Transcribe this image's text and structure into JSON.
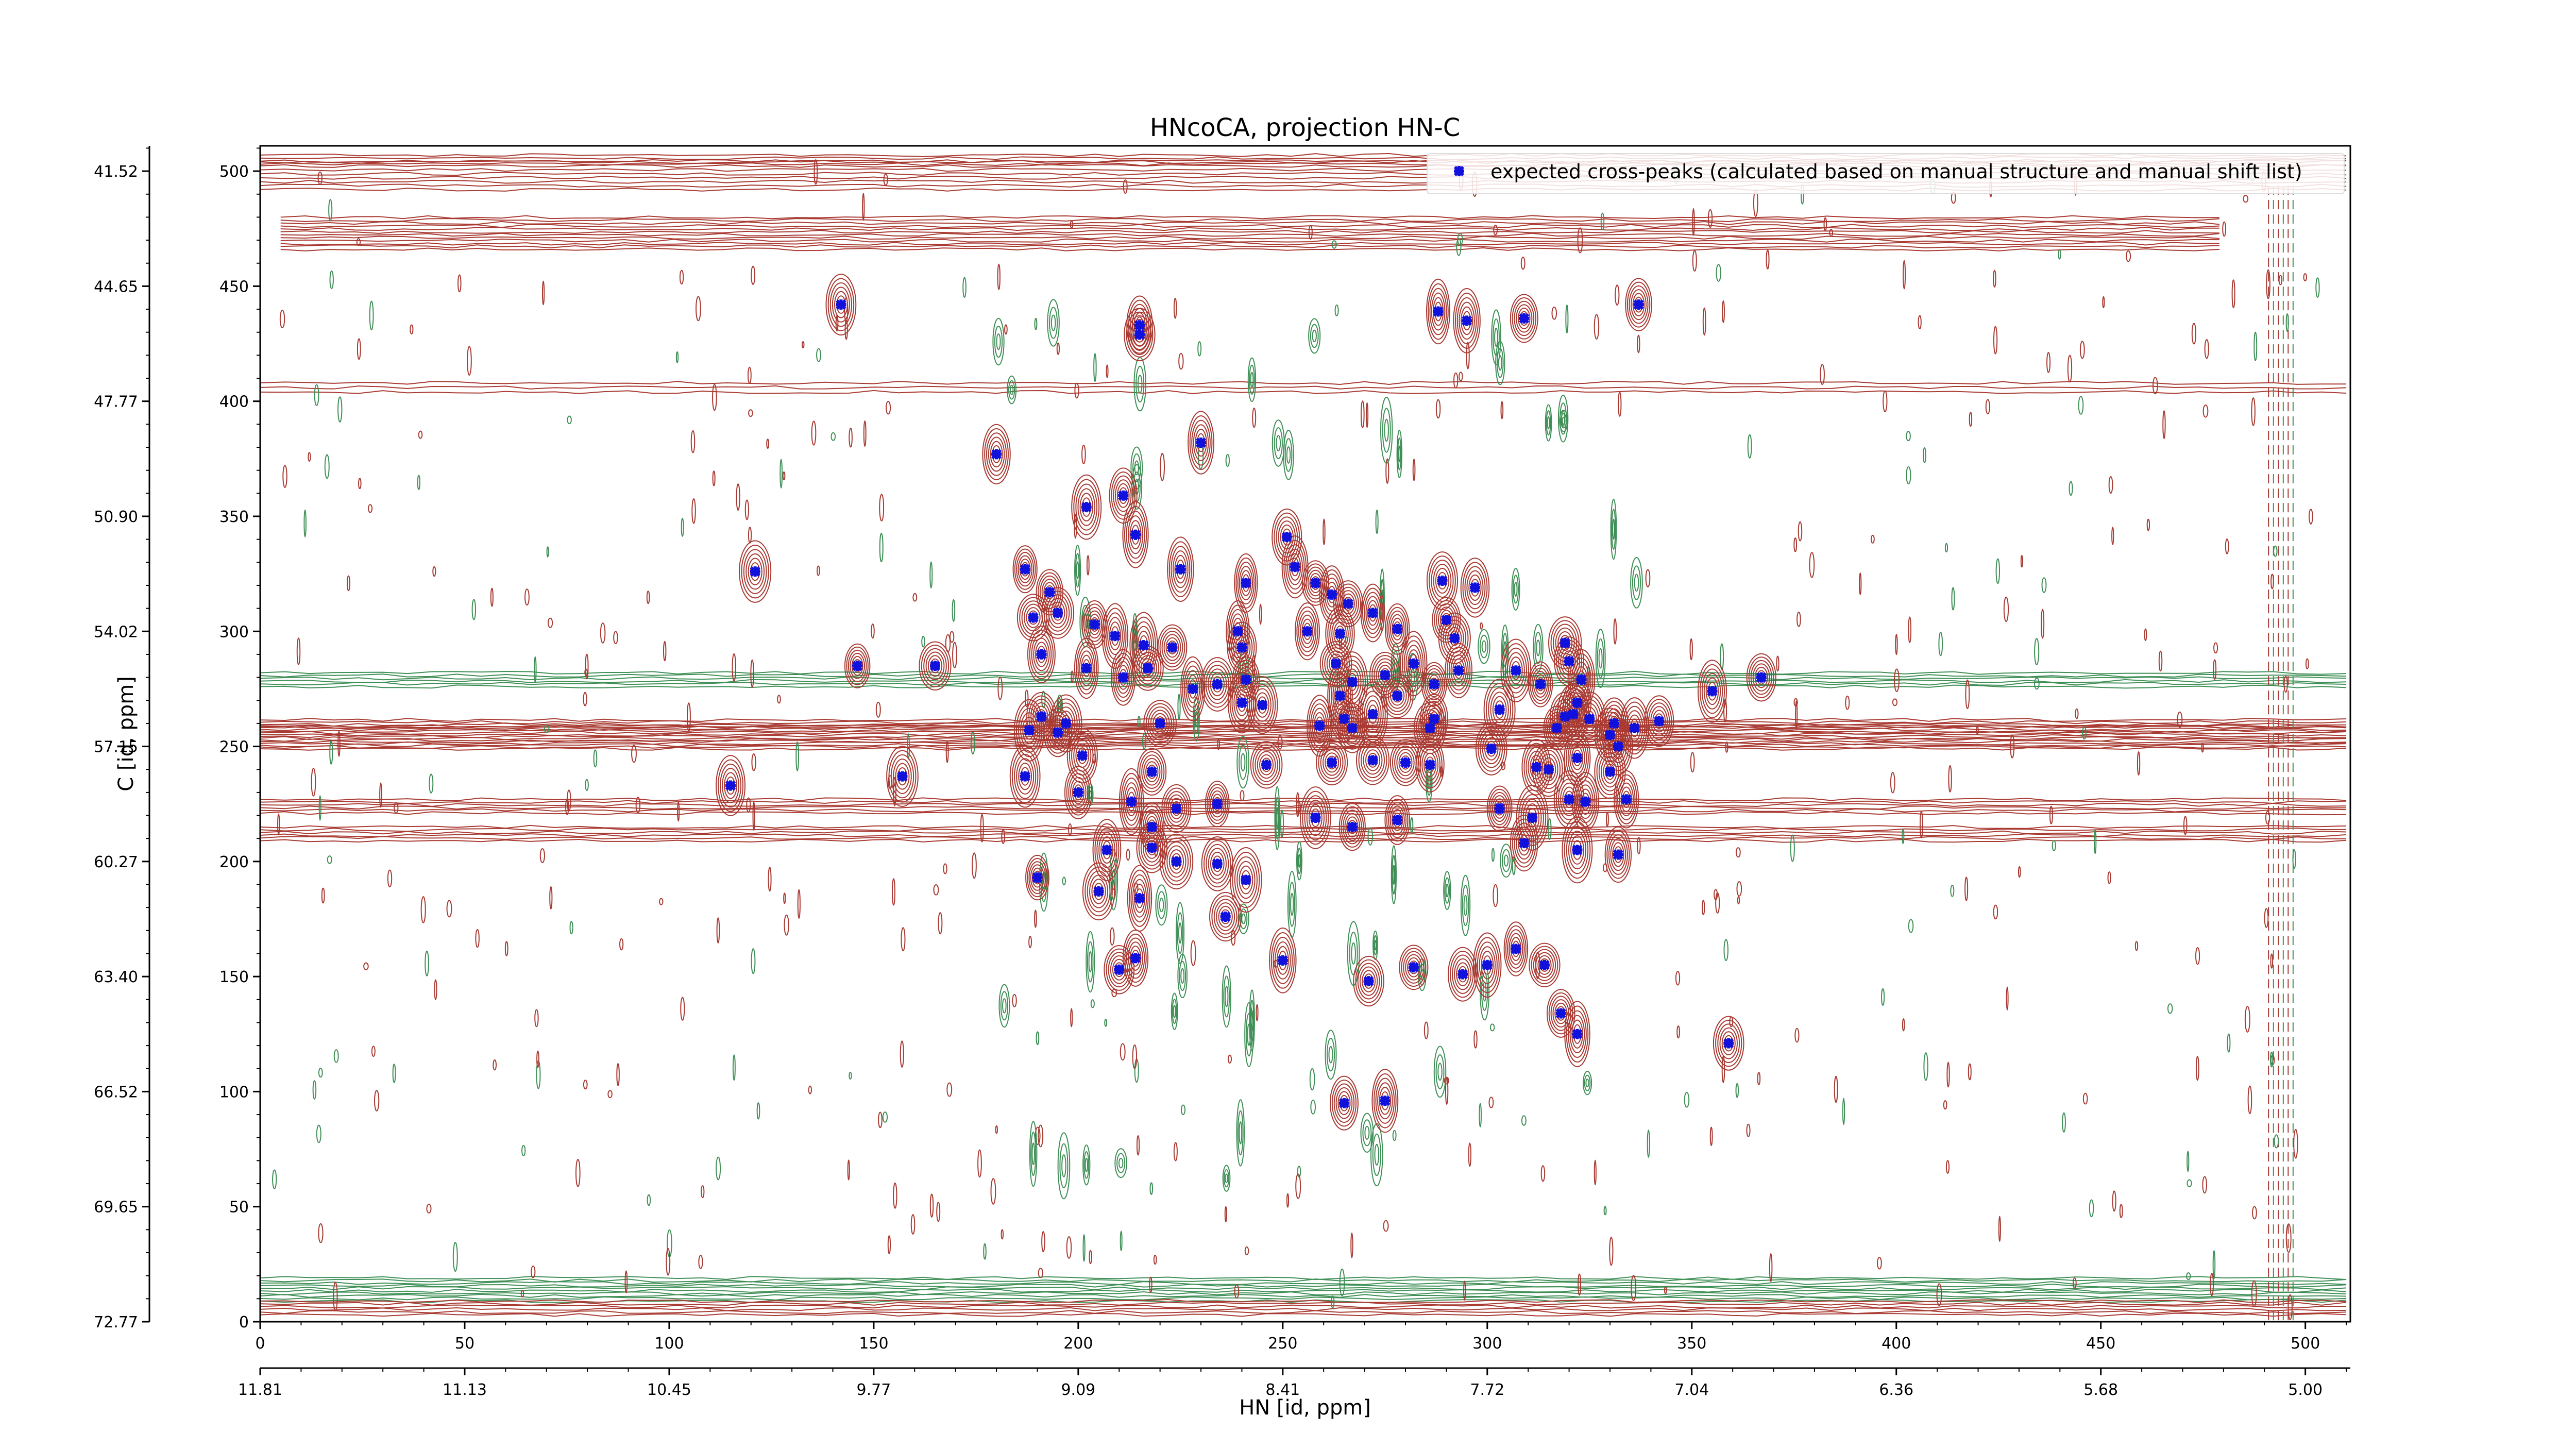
{
  "chart_data": {
    "type": "scatter",
    "title": "HNcoCA, projection HN-C",
    "xlabel": "HN [id, ppm]",
    "ylabel": "C [id, ppm]",
    "xlim": [
      0,
      511
    ],
    "ylim": [
      0,
      511
    ],
    "x_point_ticks": [
      0,
      50,
      100,
      150,
      200,
      250,
      300,
      350,
      400,
      450,
      500
    ],
    "y_point_ticks": [
      0,
      50,
      100,
      150,
      200,
      250,
      300,
      350,
      400,
      450,
      500
    ],
    "x_ppm_ticks": [
      "11.81",
      "11.13",
      "10.45",
      "9.77",
      "9.09",
      "8.41",
      "7.72",
      "7.04",
      "6.36",
      "5.68",
      "5.00"
    ],
    "y_ppm_ticks": [
      "72.77",
      "69.65",
      "66.52",
      "63.40",
      "60.27",
      "57.15",
      "54.02",
      "50.90",
      "47.77",
      "44.65",
      "41.52"
    ],
    "contour_colors": {
      "positive": "#a83a32",
      "negative": "#3f8f56"
    },
    "marker_color": "#1111dd",
    "legend_position": "top-right",
    "series": [
      {
        "name": "expected cross-peaks (calculated based on manual structure and manual shift list)",
        "points": [
          [
            142,
            442
          ],
          [
            215,
            433
          ],
          [
            215,
            429
          ],
          [
            288,
            439
          ],
          [
            295,
            435
          ],
          [
            309,
            436
          ],
          [
            337,
            442
          ],
          [
            180,
            377
          ],
          [
            230,
            382
          ],
          [
            202,
            354
          ],
          [
            211,
            359
          ],
          [
            214,
            342
          ],
          [
            121,
            326
          ],
          [
            187,
            327
          ],
          [
            225,
            327
          ],
          [
            241,
            321
          ],
          [
            251,
            341
          ],
          [
            253,
            328
          ],
          [
            258,
            321
          ],
          [
            262,
            316
          ],
          [
            266,
            312
          ],
          [
            289,
            322
          ],
          [
            297,
            319
          ],
          [
            193,
            317
          ],
          [
            189,
            306
          ],
          [
            195,
            308
          ],
          [
            204,
            303
          ],
          [
            209,
            298
          ],
          [
            216,
            294
          ],
          [
            223,
            293
          ],
          [
            239,
            300
          ],
          [
            240,
            293
          ],
          [
            256,
            300
          ],
          [
            264,
            299
          ],
          [
            272,
            308
          ],
          [
            278,
            301
          ],
          [
            290,
            305
          ],
          [
            292,
            297
          ],
          [
            319,
            295
          ],
          [
            320,
            287
          ],
          [
            146,
            285
          ],
          [
            165,
            285
          ],
          [
            191,
            290
          ],
          [
            202,
            284
          ],
          [
            211,
            280
          ],
          [
            217,
            284
          ],
          [
            228,
            275
          ],
          [
            234,
            277
          ],
          [
            241,
            279
          ],
          [
            263,
            286
          ],
          [
            267,
            278
          ],
          [
            275,
            281
          ],
          [
            278,
            272
          ],
          [
            282,
            286
          ],
          [
            287,
            277
          ],
          [
            293,
            283
          ],
          [
            307,
            283
          ],
          [
            313,
            277
          ],
          [
            323,
            279
          ],
          [
            322,
            269
          ],
          [
            264,
            272
          ],
          [
            287,
            262
          ],
          [
            272,
            264
          ],
          [
            240,
            269
          ],
          [
            245,
            268
          ],
          [
            265,
            262
          ],
          [
            267,
            258
          ],
          [
            303,
            266
          ],
          [
            325,
            262
          ],
          [
            355,
            274
          ],
          [
            367,
            280
          ],
          [
            188,
            257
          ],
          [
            197,
            260
          ],
          [
            220,
            260
          ],
          [
            259,
            259
          ],
          [
            286,
            258
          ],
          [
            317,
            258
          ],
          [
            319,
            263
          ],
          [
            321,
            264
          ],
          [
            331,
            260
          ],
          [
            191,
            263
          ],
          [
            195,
            256
          ],
          [
            201,
            246
          ],
          [
            218,
            239
          ],
          [
            246,
            242
          ],
          [
            262,
            243
          ],
          [
            272,
            244
          ],
          [
            280,
            243
          ],
          [
            286,
            242
          ],
          [
            301,
            249
          ],
          [
            312,
            241
          ],
          [
            315,
            240
          ],
          [
            322,
            245
          ],
          [
            330,
            239
          ],
          [
            332,
            250
          ],
          [
            115,
            233
          ],
          [
            157,
            237
          ],
          [
            187,
            237
          ],
          [
            200,
            230
          ],
          [
            213,
            226
          ],
          [
            218,
            215
          ],
          [
            224,
            223
          ],
          [
            234,
            225
          ],
          [
            258,
            219
          ],
          [
            267,
            215
          ],
          [
            278,
            218
          ],
          [
            303,
            223
          ],
          [
            311,
            219
          ],
          [
            320,
            227
          ],
          [
            324,
            226
          ],
          [
            334,
            227
          ],
          [
            207,
            205
          ],
          [
            218,
            206
          ],
          [
            224,
            200
          ],
          [
            234,
            199
          ],
          [
            241,
            192
          ],
          [
            309,
            208
          ],
          [
            322,
            205
          ],
          [
            332,
            203
          ],
          [
            190,
            193
          ],
          [
            205,
            187
          ],
          [
            215,
            184
          ],
          [
            236,
            176
          ],
          [
            210,
            153
          ],
          [
            214,
            158
          ],
          [
            250,
            157
          ],
          [
            271,
            148
          ],
          [
            282,
            154
          ],
          [
            294,
            151
          ],
          [
            300,
            155
          ],
          [
            307,
            162
          ],
          [
            314,
            155
          ],
          [
            318,
            134
          ],
          [
            322,
            125
          ],
          [
            359,
            121
          ],
          [
            265,
            95
          ],
          [
            275,
            96
          ],
          [
            330,
            255
          ],
          [
            336,
            258
          ],
          [
            342,
            261
          ]
        ]
      }
    ]
  }
}
